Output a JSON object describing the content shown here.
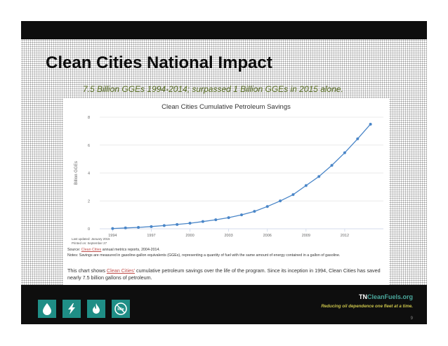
{
  "slide": {
    "title": "Clean Cities National Impact",
    "subtitle": "7.5 Billion GGEs 1994-2014; surpassed 1 Billion GGEs in 2015 alone.",
    "page_number": "9"
  },
  "chart_data": {
    "type": "line",
    "title": "Clean Cities Cumulative Petroleum Savings",
    "xlabel": "",
    "ylabel": "Billion GGEs",
    "xlim": [
      1993,
      2015
    ],
    "ylim": [
      0,
      8
    ],
    "grid": true,
    "x_ticks": [
      1994,
      1997,
      2000,
      2003,
      2006,
      2009,
      2012
    ],
    "y_ticks": [
      0,
      2,
      4,
      6,
      8
    ],
    "series": [
      {
        "name": "Cumulative petroleum savings",
        "color": "#4a86c8",
        "x": [
          1994,
          1995,
          1996,
          1997,
          1998,
          1999,
          2000,
          2001,
          2002,
          2003,
          2004,
          2005,
          2006,
          2007,
          2008,
          2009,
          2010,
          2011,
          2012,
          2013,
          2014
        ],
        "y": [
          0.02,
          0.06,
          0.1,
          0.16,
          0.23,
          0.31,
          0.4,
          0.52,
          0.65,
          0.8,
          1.0,
          1.25,
          1.6,
          2.0,
          2.45,
          3.1,
          3.75,
          4.55,
          5.45,
          6.45,
          7.5
        ]
      }
    ]
  },
  "chart_notes": {
    "last_updated": "Last updated: January 2015",
    "printed_on": "Printed on: September 27",
    "source_prefix": "Source: ",
    "source_link": "Clean Cities",
    "source_suffix": " annual metrics reports, 2004-2014.",
    "notes": "Notes: Savings are measured in gasoline-gallon equivalents (GGEs), representing a quantity of fuel with the same amount of energy contained in a gallon of gasoline."
  },
  "description": {
    "prefix": "This chart shows ",
    "link": "Clean Cities'",
    "suffix": " cumulative petroleum savings over the life of the program. Since its inception in 1994, Clean Cities has saved nearly 7.5 billion gallons of petroleum."
  },
  "footer": {
    "brand_main": "TN",
    "brand_accent": "CleanFuels",
    "brand_tld": ".org",
    "tagline": "Reducing oil dependence one fleet at a time.",
    "icons": [
      "drop-icon",
      "lightning-icon",
      "flame-icon",
      "no-idle-icon"
    ],
    "no_idle_label": "Idle",
    "icon_color": "#1f8e86"
  }
}
